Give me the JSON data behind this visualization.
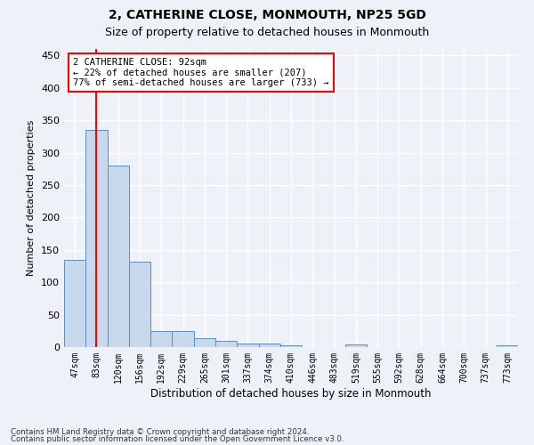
{
  "title1": "2, CATHERINE CLOSE, MONMOUTH, NP25 5GD",
  "title2": "Size of property relative to detached houses in Monmouth",
  "xlabel": "Distribution of detached houses by size in Monmouth",
  "ylabel": "Number of detached properties",
  "bar_labels": [
    "47sqm",
    "83sqm",
    "120sqm",
    "156sqm",
    "192sqm",
    "229sqm",
    "265sqm",
    "301sqm",
    "337sqm",
    "374sqm",
    "410sqm",
    "446sqm",
    "483sqm",
    "519sqm",
    "555sqm",
    "592sqm",
    "628sqm",
    "664sqm",
    "700sqm",
    "737sqm",
    "773sqm"
  ],
  "bar_values": [
    134,
    335,
    280,
    132,
    25,
    25,
    14,
    10,
    6,
    5,
    3,
    0,
    0,
    4,
    0,
    0,
    0,
    0,
    0,
    0,
    3
  ],
  "bar_color": "#c9d9ed",
  "bar_edge_color": "#5a8fc0",
  "vline_x": 1.0,
  "vline_color": "red",
  "annotation_text": "2 CATHERINE CLOSE: 92sqm\n← 22% of detached houses are smaller (207)\n77% of semi-detached houses are larger (733) →",
  "annotation_box_color": "white",
  "annotation_box_edge": "red",
  "ylim": [
    0,
    460
  ],
  "yticks": [
    0,
    50,
    100,
    150,
    200,
    250,
    300,
    350,
    400,
    450
  ],
  "footnote1": "Contains HM Land Registry data © Crown copyright and database right 2024.",
  "footnote2": "Contains public sector information licensed under the Open Government Licence v3.0.",
  "background_color": "#eef2f8",
  "plot_bg_color": "#eef2f8",
  "grid_color": "#ffffff"
}
